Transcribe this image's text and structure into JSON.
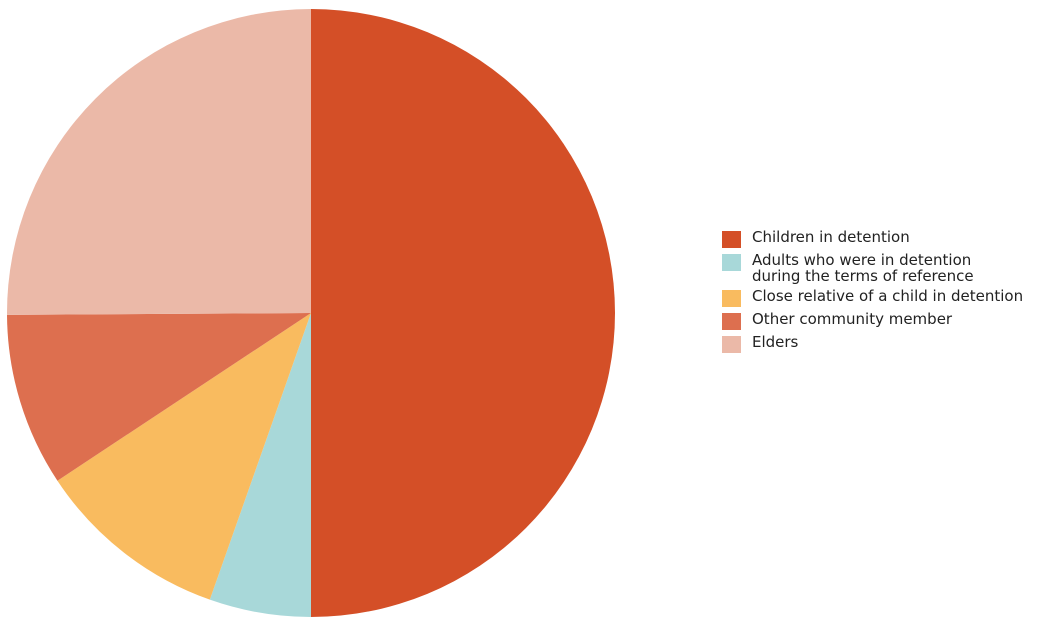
{
  "chart_data": {
    "type": "pie",
    "title": "",
    "start_angle_deg": 0,
    "direction": "clockwise",
    "legend_position": "right",
    "slices": [
      {
        "label": "Children in detention",
        "value": 50.0,
        "color": "#d44f27"
      },
      {
        "label": "Adults who were in detention\nduring the terms of reference",
        "value": 5.4,
        "color": "#a8d8d9"
      },
      {
        "label": "Close relative of a child in detention",
        "value": 10.3,
        "color": "#f9bb5f"
      },
      {
        "label": "Other community member",
        "value": 9.2,
        "color": "#dd6f4f"
      },
      {
        "label": "Elders",
        "value": 25.1,
        "color": "#ebb9a8"
      }
    ]
  }
}
